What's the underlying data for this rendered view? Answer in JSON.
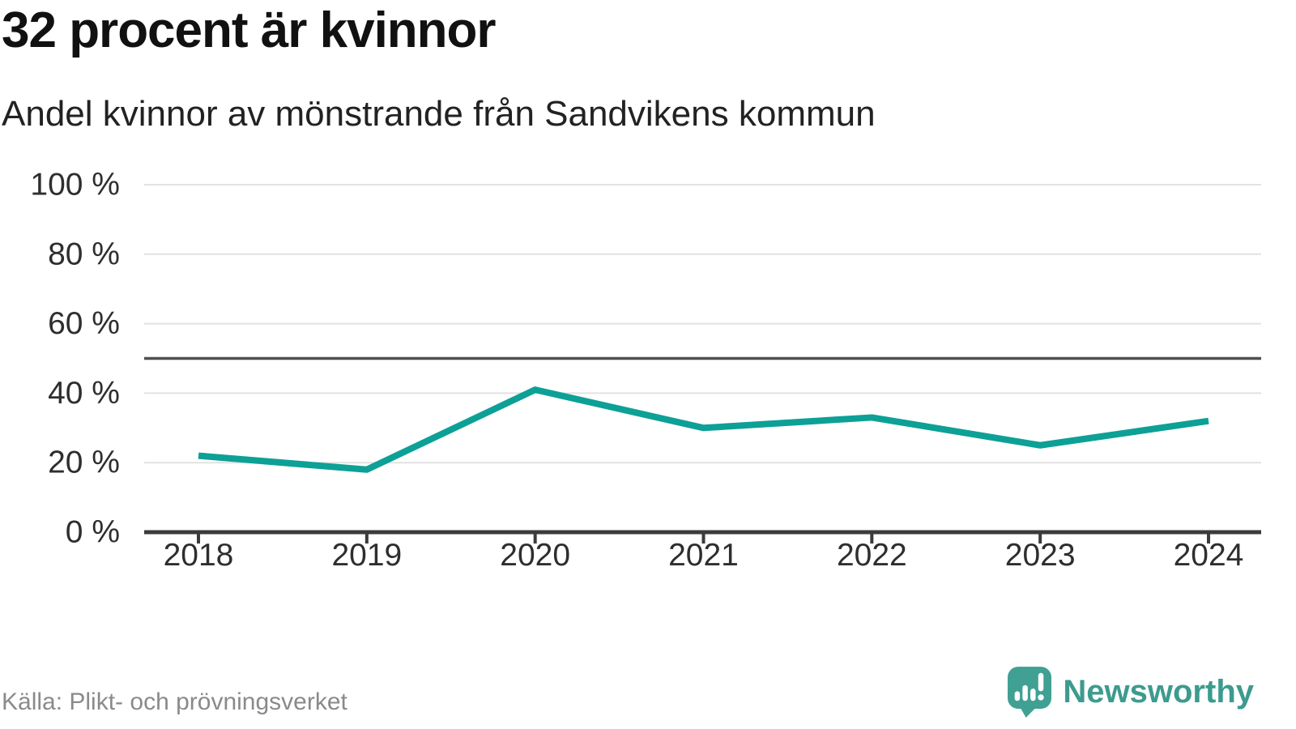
{
  "header": {
    "title": "32 procent är kvinnor",
    "subtitle": "Andel kvinnor av mönstrande från Sandvikens kommun"
  },
  "chart_data": {
    "type": "line",
    "title": "32 procent är kvinnor",
    "subtitle": "Andel kvinnor av mönstrande från Sandvikens kommun",
    "categories": [
      "2018",
      "2019",
      "2020",
      "2021",
      "2022",
      "2023",
      "2024"
    ],
    "series": [
      {
        "name": "Andel kvinnor av mönstrande",
        "values": [
          22,
          18,
          41,
          30,
          33,
          25,
          32
        ]
      }
    ],
    "unit": "%",
    "ylim": [
      0,
      100
    ],
    "y_ticks": [
      {
        "value": 0,
        "label": "0 %"
      },
      {
        "value": 20,
        "label": "20 %"
      },
      {
        "value": 40,
        "label": "40 %"
      },
      {
        "value": 60,
        "label": "60 %"
      },
      {
        "value": 80,
        "label": "80 %"
      },
      {
        "value": 100,
        "label": "100 %"
      }
    ],
    "reference_line": {
      "value": 50
    },
    "grid": true,
    "legend": "none",
    "xlabel": "",
    "ylabel": ""
  },
  "footer": {
    "source": "Källa: Plikt- och prövningsverket",
    "brand": "Newsworthy"
  },
  "colors": {
    "line": "#0da096",
    "grid": "#e2e2e2",
    "axis": "#3b3b3b",
    "reference": "#4f4f4f",
    "tick_text": "#2e2e2e",
    "title": "#111111",
    "subtitle": "#222222",
    "source": "#8a8a8a",
    "brand": "#3c9b8e",
    "brand_icon": "#3fa093"
  }
}
